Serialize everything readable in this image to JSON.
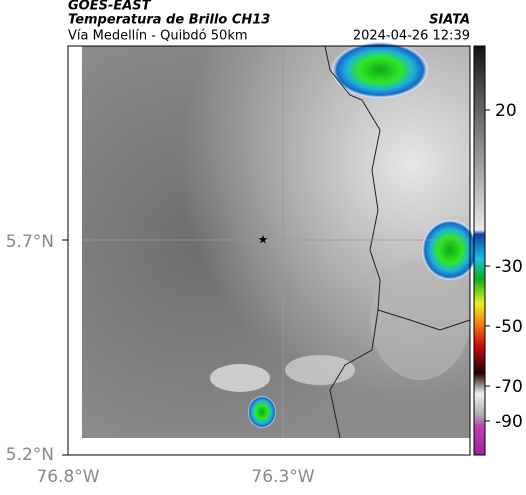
{
  "header": {
    "source": "GOES-EAST",
    "product": "Temperatura de Brillo CH13",
    "brand": "SIATA",
    "region": "Vía Medellín - Quibdó 50km",
    "timestamp": "2024-04-26 12:39"
  },
  "map": {
    "lat_labels": [
      "5.7°N",
      "5.2°N"
    ],
    "lon_labels": [
      "76.8°W",
      "76.3°W"
    ]
  },
  "colorbar": {
    "tick_labels": [
      "20",
      "-30",
      "-50",
      "-70",
      "-90"
    ]
  }
}
